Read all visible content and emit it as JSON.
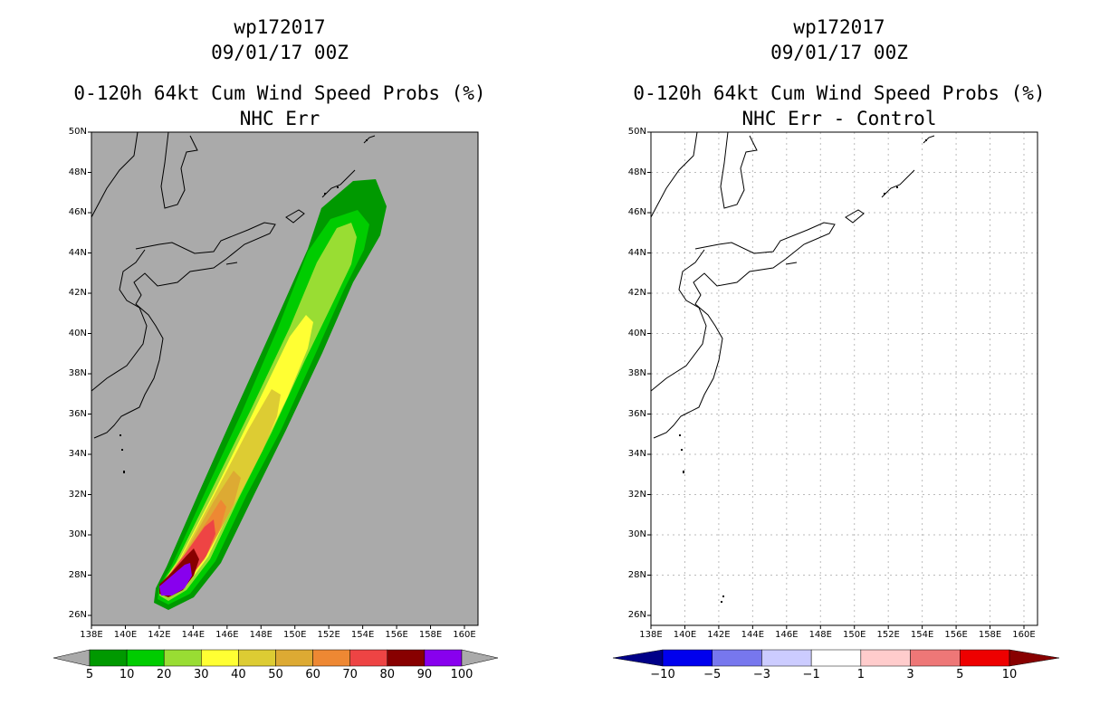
{
  "panels": [
    {
      "id": "left",
      "storm_id": "wp172017",
      "datetime": "09/01/17 00Z",
      "product": "0-120h 64kt Cum Wind Speed Probs (%)",
      "subtitle": "NHC Err",
      "map_background": "#aaaaaa",
      "lat_labels": [
        "26N",
        "28N",
        "30N",
        "32N",
        "34N",
        "36N",
        "38N",
        "40N",
        "42N",
        "44N",
        "46N",
        "48N",
        "50N"
      ],
      "lon_labels": [
        "138E",
        "140E",
        "142E",
        "144E",
        "146E",
        "148E",
        "150E",
        "152E",
        "154E",
        "156E",
        "158E",
        "160E"
      ],
      "colorbar": {
        "colors": [
          "#009900",
          "#00cc00",
          "#99dd33",
          "#ffff33",
          "#ddcc33",
          "#ddaa33",
          "#ee8833",
          "#ee4444",
          "#880000",
          "#8800ee"
        ],
        "under_color": "#aaaaaa",
        "over_color": "#aaaaaa",
        "labels": [
          "5",
          "10",
          "20",
          "30",
          "40",
          "50",
          "60",
          "70",
          "80",
          "90",
          "100"
        ]
      }
    },
    {
      "id": "right",
      "storm_id": "wp172017",
      "datetime": "09/01/17 00Z",
      "product": "0-120h 64kt Cum Wind Speed Probs (%)",
      "subtitle": "NHC Err - Control",
      "map_background": "#ffffff",
      "lat_labels": [
        "26N",
        "28N",
        "30N",
        "32N",
        "34N",
        "36N",
        "38N",
        "40N",
        "42N",
        "44N",
        "46N",
        "48N",
        "50N"
      ],
      "lon_labels": [
        "138E",
        "140E",
        "142E",
        "144E",
        "146E",
        "148E",
        "150E",
        "152E",
        "154E",
        "156E",
        "158E",
        "160E"
      ],
      "colorbar": {
        "colors": [
          "#0000ee",
          "#7777ee",
          "#ccccff",
          "#ffffff",
          "#ffcccc",
          "#ee7777",
          "#ee0000"
        ],
        "under_color": "#000088",
        "over_color": "#880000",
        "labels": [
          "−10",
          "−5",
          "−3",
          "−1",
          "1",
          "3",
          "5",
          "10"
        ]
      }
    }
  ]
}
